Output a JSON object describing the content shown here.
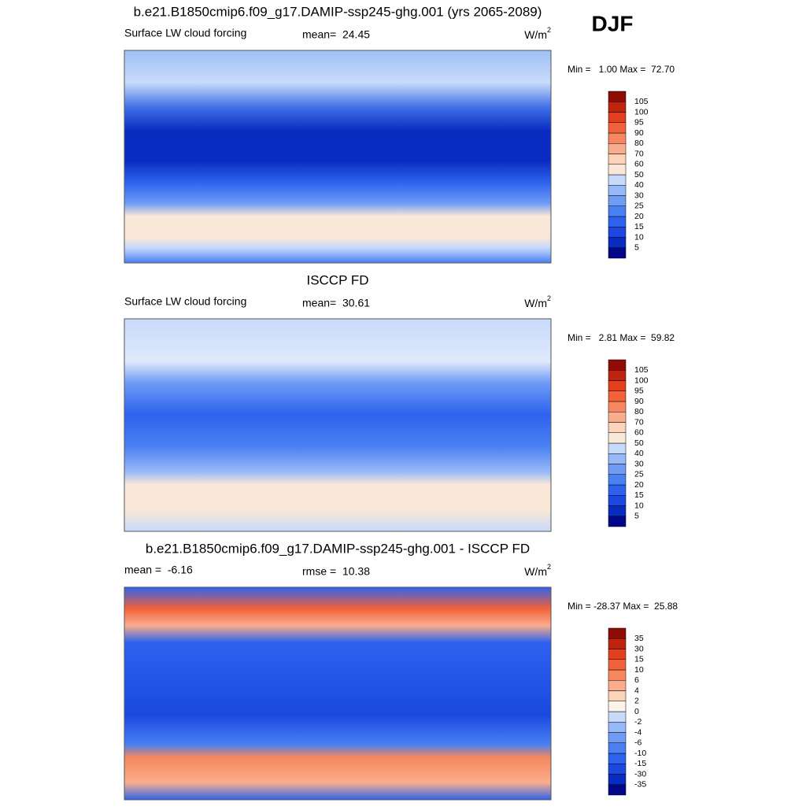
{
  "season": "DJF",
  "panels": [
    {
      "title": "b.e21.B1850cmip6.f09_g17.DAMIP-ssp245-ghg.001 (yrs 2065-2089)",
      "left": "Surface LW cloud forcing",
      "center": "mean=  24.45",
      "units": "W/m",
      "units_sup": "2",
      "minmax": "Min =   1.00 Max =  72.70",
      "colorbar": {
        "labels": [
          "5",
          "10",
          "15",
          "20",
          "25",
          "30",
          "40",
          "50",
          "60",
          "70",
          "80",
          "90",
          "95",
          "100",
          "105"
        ],
        "colors": [
          "#02078a",
          "#0a2bbf",
          "#1a48e0",
          "#2e62ee",
          "#4a80f2",
          "#6f9cf5",
          "#97b9f7",
          "#c8dafa",
          "#f9e8d8",
          "#fcd2b8",
          "#f9ad8c",
          "#f6875f",
          "#f2613a",
          "#e33f1e",
          "#c0230f",
          "#8e0c06"
        ]
      }
    },
    {
      "title": "ISCCP FD",
      "left": "Surface LW cloud forcing",
      "center": "mean=  30.61",
      "units": "W/m",
      "units_sup": "2",
      "minmax": "Min =   2.81 Max =  59.82",
      "colorbar": {
        "labels": [
          "5",
          "10",
          "15",
          "20",
          "25",
          "30",
          "40",
          "50",
          "60",
          "70",
          "80",
          "90",
          "95",
          "100",
          "105"
        ],
        "colors": [
          "#02078a",
          "#0a2bbf",
          "#1a48e0",
          "#2e62ee",
          "#4a80f2",
          "#6f9cf5",
          "#97b9f7",
          "#c8dafa",
          "#f9e8d8",
          "#fcd2b8",
          "#f9ad8c",
          "#f6875f",
          "#f2613a",
          "#e33f1e",
          "#c0230f",
          "#8e0c06"
        ]
      }
    },
    {
      "title": "b.e21.B1850cmip6.f09_g17.DAMIP-ssp245-ghg.001 - ISCCP FD",
      "left": "mean =  -6.16",
      "center": "rmse =  10.38",
      "units": "W/m",
      "units_sup": "2",
      "minmax": "Min = -28.37 Max =  25.88",
      "colorbar": {
        "labels": [
          "-35",
          "-30",
          "-15",
          "-10",
          "-6",
          "-4",
          "-2",
          "0",
          "2",
          "4",
          "6",
          "10",
          "15",
          "30",
          "35"
        ],
        "colors": [
          "#02078a",
          "#0a2bbf",
          "#1a48e0",
          "#2e62ee",
          "#4a80f2",
          "#6f9cf5",
          "#97b9f7",
          "#c8dafa",
          "#fdf3ea",
          "#fcd2b8",
          "#f9ad8c",
          "#f6875f",
          "#f2613a",
          "#e33f1e",
          "#c0230f",
          "#8e0c06"
        ]
      }
    }
  ]
}
